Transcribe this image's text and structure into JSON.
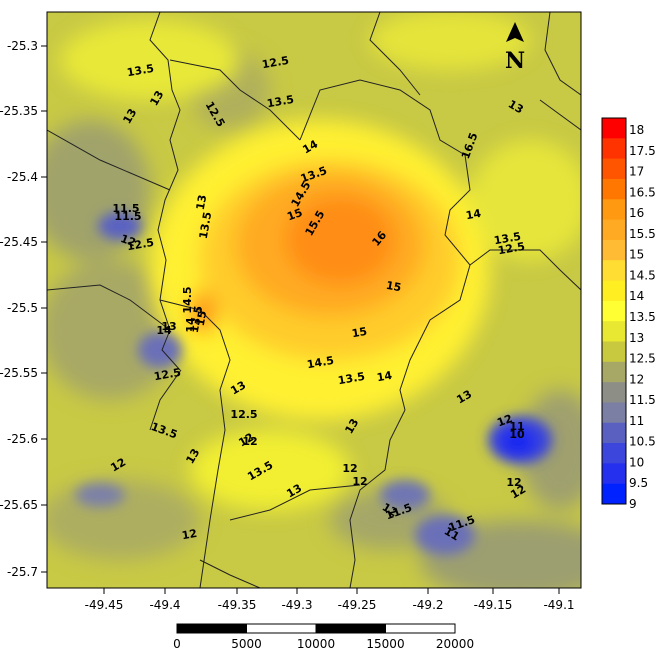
{
  "map": {
    "x_ticks": [
      "-49.45",
      "-49.4",
      "-49.35",
      "-49.3",
      "-49.25",
      "-49.2",
      "-49.15",
      "-49.1"
    ],
    "y_ticks": [
      "-25.3",
      "-25.35",
      "-25.4",
      "-25.45",
      "-25.5",
      "-25.55",
      "-25.6",
      "-25.65",
      "-25.7"
    ],
    "north_label": "N",
    "contour_labels": [
      {
        "text": "13.5"
      },
      {
        "text": "13"
      },
      {
        "text": "13"
      },
      {
        "text": "12.5"
      },
      {
        "text": "12.5"
      },
      {
        "text": "13.5"
      },
      {
        "text": "13"
      },
      {
        "text": "14"
      },
      {
        "text": "13.5"
      },
      {
        "text": "13.5"
      },
      {
        "text": "14.5"
      },
      {
        "text": "15"
      },
      {
        "text": "15.5"
      },
      {
        "text": "16"
      },
      {
        "text": "16.5"
      },
      {
        "text": "14"
      },
      {
        "text": "13.5"
      },
      {
        "text": "12.5"
      },
      {
        "text": "13"
      },
      {
        "text": "11.5"
      },
      {
        "text": "12"
      },
      {
        "text": "12.5"
      },
      {
        "text": "14.5"
      },
      {
        "text": "15"
      },
      {
        "text": "14"
      },
      {
        "text": "15"
      },
      {
        "text": "13.5"
      },
      {
        "text": "13"
      },
      {
        "text": "12.5"
      },
      {
        "text": "15"
      },
      {
        "text": "14.5"
      },
      {
        "text": "13.5"
      },
      {
        "text": "14"
      },
      {
        "text": "13"
      },
      {
        "text": "14"
      },
      {
        "text": "12.5"
      },
      {
        "text": "12"
      },
      {
        "text": "13.5"
      },
      {
        "text": "13"
      },
      {
        "text": "13"
      },
      {
        "text": "12"
      },
      {
        "text": "11"
      },
      {
        "text": "10"
      },
      {
        "text": "13.5"
      },
      {
        "text": "12"
      },
      {
        "text": "13"
      },
      {
        "text": "12"
      },
      {
        "text": "12"
      },
      {
        "text": "12"
      },
      {
        "text": "12"
      },
      {
        "text": "11.5"
      },
      {
        "text": "11.5"
      },
      {
        "text": "11"
      },
      {
        "text": "12"
      },
      {
        "text": "12"
      },
      {
        "text": "13"
      },
      {
        "text": "11.5"
      },
      {
        "text": "12"
      }
    ]
  },
  "colorbar": {
    "labels": [
      "18",
      "17.5",
      "17",
      "16.5",
      "16",
      "15.5",
      "15",
      "14.5",
      "14",
      "13.5",
      "13",
      "12.5",
      "12",
      "11.5",
      "11",
      "10.5",
      "10",
      "9.5",
      "9"
    ],
    "colors": [
      "#ff0000",
      "#ff3300",
      "#ff5500",
      "#ff7700",
      "#ff9911",
      "#ffaa22",
      "#ffbb33",
      "#ffdd33",
      "#ffee22",
      "#ffff33",
      "#e8e833",
      "#c9c93f",
      "#a7a865",
      "#8d8f86",
      "#7a7fa3",
      "#5a60c0",
      "#3c45dc",
      "#2530ee",
      "#0022ff"
    ]
  },
  "scalebar": {
    "labels": [
      "0",
      "5000",
      "10000",
      "15000",
      "20000"
    ]
  },
  "palette": {
    "background_field": "#c9cc3c",
    "hot": "#ff9a1a",
    "cold": "#2a35e8"
  }
}
